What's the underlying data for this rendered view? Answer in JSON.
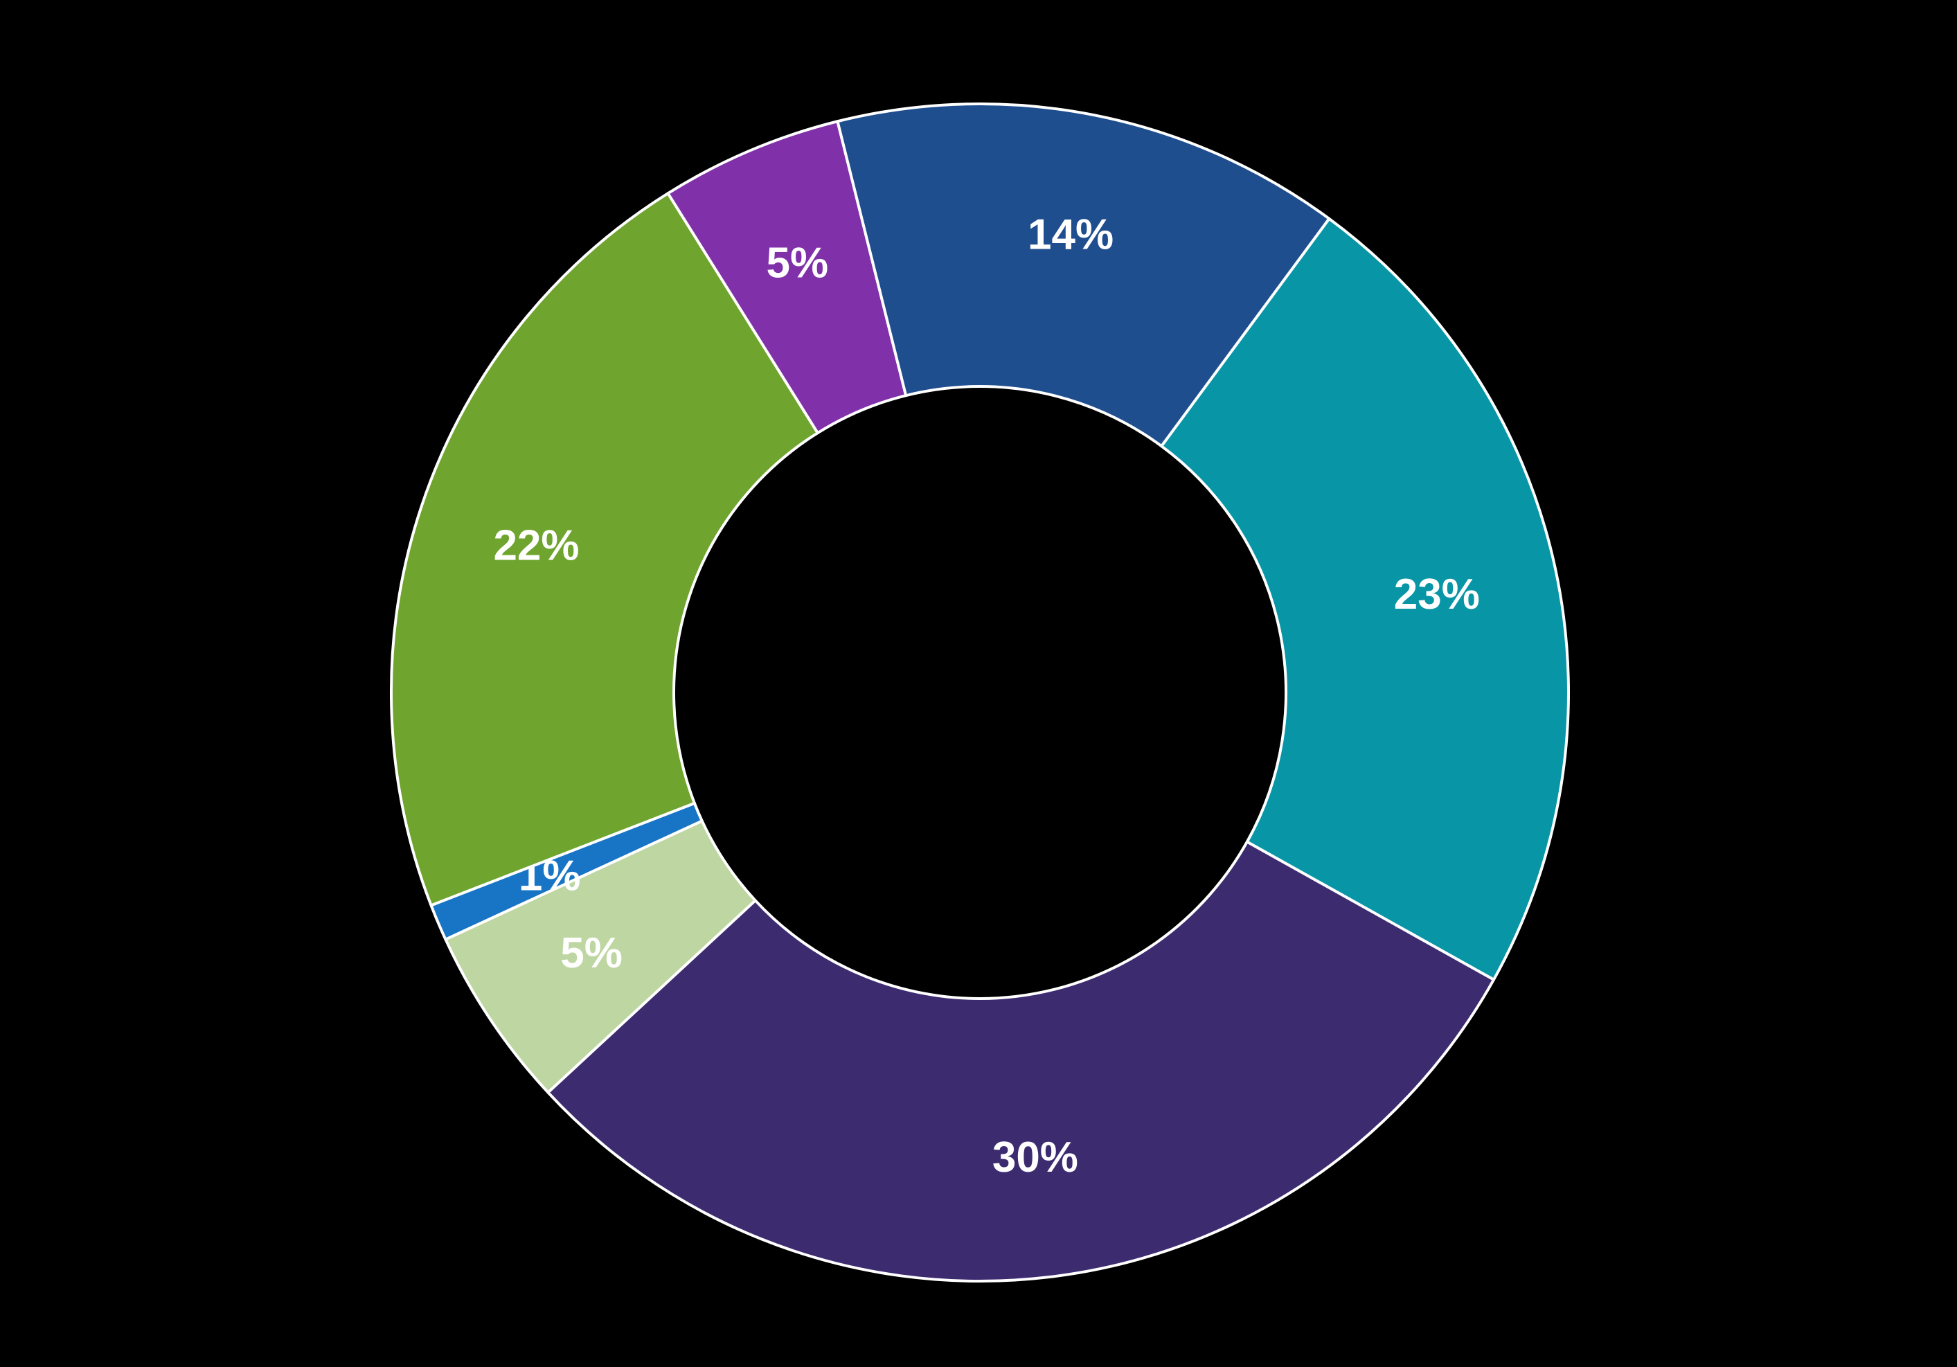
{
  "page": {
    "background_color": "#000000"
  },
  "chart_data": {
    "type": "pie",
    "subtype": "donut",
    "title": "",
    "legend": "none",
    "grid": false,
    "start_angle_deg": -14,
    "inner_radius_ratio": 0.52,
    "label_color": "#FFFFFF",
    "separator_color": "#FFFFFF",
    "segments": [
      {
        "label": "14%",
        "value": 14,
        "color": "#1F4E8F"
      },
      {
        "label": "23%",
        "value": 23,
        "color": "#0895A6"
      },
      {
        "label": "30%",
        "value": 30,
        "color": "#3D2B70"
      },
      {
        "label": "5%",
        "value": 5,
        "color": "#BED6A2"
      },
      {
        "label": "1%",
        "value": 1,
        "color": "#1874C5"
      },
      {
        "label": "22%",
        "value": 22,
        "color": "#6FA42E"
      },
      {
        "label": "5%",
        "value": 5,
        "color": "#8030A8"
      }
    ]
  }
}
